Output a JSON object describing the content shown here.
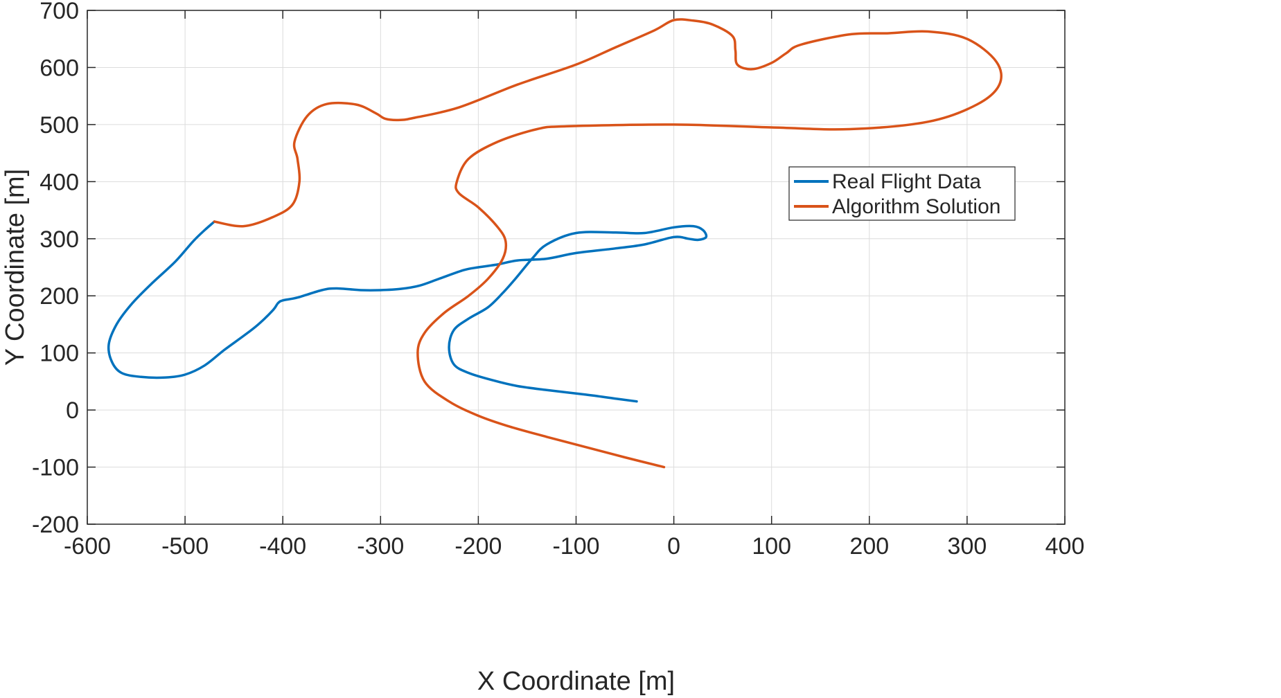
{
  "chart_data": {
    "type": "line",
    "xlabel": "X Coordinate [m]",
    "ylabel": "Y Coordinate [m]",
    "xlim": [
      -600,
      400
    ],
    "ylim": [
      -200,
      700
    ],
    "xticks": [
      -600,
      -500,
      -400,
      -300,
      -200,
      -100,
      0,
      100,
      200,
      300,
      400
    ],
    "yticks": [
      -200,
      -100,
      0,
      100,
      200,
      300,
      400,
      500,
      600,
      700
    ],
    "grid": true,
    "legend_position": "right",
    "series": [
      {
        "name": "Real Flight Data",
        "color": "#0072BD",
        "x": [
          -38,
          -60,
          -90,
          -130,
          -160,
          -185,
          -210,
          -225,
          -230,
          -225,
          -210,
          -190,
          -175,
          -162,
          -145,
          -130,
          -100,
          -60,
          -30,
          0,
          20,
          30,
          33,
          25,
          15,
          0,
          -30,
          -60,
          -100,
          -130,
          -160,
          -180,
          -200,
          -215,
          -240,
          -260,
          -280,
          -300,
          -320,
          -345,
          -360,
          -385,
          -400,
          -405,
          -410,
          -425,
          -440,
          -460,
          -480,
          -500,
          -520,
          -545,
          -565,
          -575,
          -578,
          -570,
          -555,
          -535,
          -510,
          -492,
          -480,
          -470
        ],
        "y": [
          15,
          20,
          27,
          35,
          42,
          52,
          65,
          80,
          110,
          140,
          160,
          180,
          205,
          230,
          265,
          290,
          310,
          311,
          310,
          320,
          322,
          315,
          303,
          298,
          300,
          303,
          290,
          283,
          275,
          265,
          262,
          255,
          250,
          245,
          230,
          218,
          212,
          210,
          210,
          213,
          210,
          197,
          192,
          187,
          175,
          150,
          130,
          105,
          78,
          62,
          57,
          58,
          65,
          85,
          115,
          150,
          185,
          220,
          260,
          295,
          315,
          330
        ]
      },
      {
        "name": "Algorithm Solution",
        "color": "#D95319",
        "x": [
          -10,
          -50,
          -90,
          -130,
          -170,
          -200,
          -230,
          -255,
          -262,
          -255,
          -235,
          -210,
          -190,
          -175,
          -172,
          -180,
          -200,
          -220,
          -222,
          -210,
          -180,
          -140,
          -110,
          0,
          100,
          180,
          260,
          310,
          333,
          330,
          300,
          260,
          220,
          180,
          130,
          115,
          100,
          80,
          65,
          63,
          60,
          40,
          20,
          0,
          -20,
          -60,
          -100,
          -160,
          -220,
          -265,
          -280,
          -295,
          -305,
          -325,
          -355,
          -375,
          -388,
          -385,
          -383,
          -390,
          -410,
          -440,
          -470
        ],
        "y": [
          -100,
          -83,
          -65,
          -47,
          -28,
          -10,
          15,
          50,
          100,
          135,
          170,
          200,
          230,
          265,
          295,
          320,
          355,
          380,
          400,
          440,
          470,
          492,
          497,
          500,
          495,
          492,
          505,
          535,
          570,
          610,
          650,
          663,
          660,
          658,
          640,
          625,
          608,
          597,
          605,
          630,
          655,
          675,
          682,
          683,
          665,
          635,
          605,
          570,
          530,
          512,
          508,
          510,
          520,
          535,
          536,
          515,
          470,
          440,
          400,
          360,
          338,
          322,
          330
        ]
      }
    ]
  }
}
